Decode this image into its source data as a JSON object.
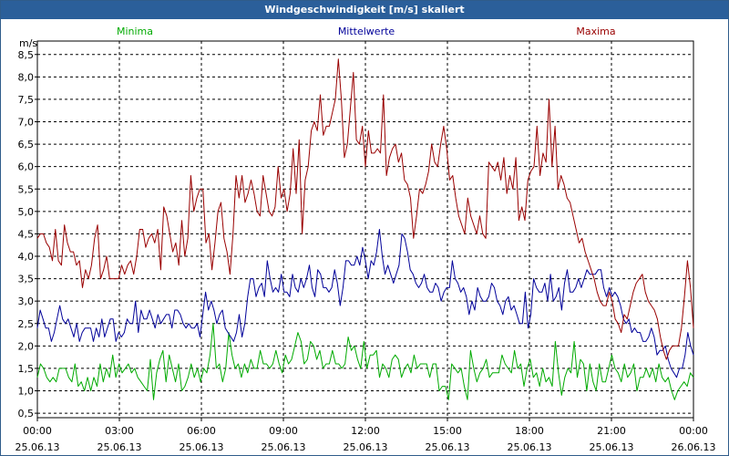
{
  "window": {
    "title": "Windgeschwindigkeit [m/s] skaliert"
  },
  "chart_data": {
    "type": "line",
    "title": "Windgeschwindigkeit [m/s] skaliert",
    "ylabel": "m/s",
    "xlabel": "",
    "ylim": [
      0.4,
      8.8
    ],
    "xlim": [
      0,
      24
    ],
    "yticks": [
      0.5,
      1.0,
      1.5,
      2.0,
      2.5,
      3.0,
      3.5,
      4.0,
      4.5,
      5.0,
      5.5,
      6.0,
      6.5,
      7.0,
      7.5,
      8.0,
      8.5
    ],
    "ytick_labels": [
      "0,5",
      "1,0",
      "1,5",
      "2,0",
      "2,5",
      "3,0",
      "3,5",
      "4,0",
      "4,5",
      "5,0",
      "5,5",
      "6,0",
      "6,5",
      "7,0",
      "7,5",
      "8,0",
      "8,5"
    ],
    "xticks": [
      {
        "time": "00:00",
        "date": "25.06.13",
        "x": 0
      },
      {
        "time": "03:00",
        "date": "25.06.13",
        "x": 3
      },
      {
        "time": "06:00",
        "date": "25.06.13",
        "x": 6
      },
      {
        "time": "09:00",
        "date": "25.06.13",
        "x": 9
      },
      {
        "time": "12:00",
        "date": "25.06.13",
        "x": 12
      },
      {
        "time": "15:00",
        "date": "25.06.13",
        "x": 15
      },
      {
        "time": "18:00",
        "date": "25.06.13",
        "x": 18
      },
      {
        "time": "21:00",
        "date": "25.06.13",
        "x": 21
      },
      {
        "time": "00:00",
        "date": "26.06.13",
        "x": 24
      }
    ],
    "grid": true,
    "series": [
      {
        "name": "Minima",
        "color": "#00aa00",
        "values": [
          1.3,
          1.6,
          1.5,
          1.3,
          1.2,
          1.3,
          1.2,
          1.5,
          1.5,
          1.5,
          1.3,
          1.2,
          1.6,
          1.1,
          1.2,
          1.0,
          1.3,
          1.0,
          1.3,
          1.1,
          1.6,
          1.2,
          1.5,
          1.3,
          1.8,
          1.3,
          1.6,
          1.4,
          1.5,
          1.6,
          1.4,
          1.5,
          1.3,
          1.2,
          1.1,
          1.0,
          1.7,
          0.8,
          1.4,
          1.7,
          1.9,
          1.2,
          1.8,
          1.5,
          1.2,
          1.6,
          1.0,
          1.1,
          1.3,
          1.6,
          1.3,
          1.5,
          1.2,
          1.5,
          1.4,
          1.8,
          2.5,
          1.5,
          1.6,
          1.2,
          1.5,
          2.3,
          1.8,
          1.5,
          1.6,
          1.3,
          1.6,
          1.4,
          1.7,
          1.5,
          1.5,
          1.9,
          1.6,
          1.6,
          1.5,
          1.6,
          1.9,
          1.6,
          1.4,
          1.8,
          1.6,
          1.7,
          2.0,
          2.3,
          2.1,
          1.6,
          1.7,
          2.1,
          2.0,
          1.7,
          1.9,
          1.5,
          1.6,
          1.6,
          1.9,
          1.6,
          1.6,
          1.5,
          1.6,
          2.2,
          1.9,
          2.0,
          1.7,
          1.5,
          2.1,
          1.5,
          1.8,
          1.8,
          1.9,
          1.3,
          1.6,
          1.5,
          1.3,
          1.7,
          1.8,
          1.7,
          1.3,
          1.5,
          1.6,
          1.4,
          1.8,
          1.5,
          1.6,
          1.6,
          1.6,
          1.3,
          1.6,
          1.6,
          1.0,
          1.1,
          1.1,
          0.8,
          1.6,
          1.5,
          1.4,
          1.5,
          1.1,
          0.8,
          1.9,
          1.5,
          1.2,
          1.4,
          1.5,
          1.7,
          1.3,
          1.4,
          1.4,
          1.4,
          1.8,
          1.6,
          1.5,
          1.4,
          1.9,
          1.5,
          1.6,
          1.1,
          1.5,
          1.7,
          1.3,
          1.4,
          1.1,
          1.5,
          1.2,
          1.3,
          1.1,
          2.1,
          1.4,
          0.9,
          1.3,
          1.5,
          1.4,
          2.1,
          1.3,
          1.7,
          1.6,
          1.0,
          1.6,
          1.2,
          1.0,
          1.6,
          1.2,
          1.2,
          1.5,
          1.8,
          1.5,
          1.4,
          1.2,
          1.6,
          1.3,
          1.4,
          1.6,
          1.0,
          1.3,
          1.3,
          1.5,
          1.3,
          1.5,
          1.2,
          1.6,
          1.3,
          1.2,
          1.3,
          1.0,
          0.8,
          1.0,
          1.1,
          1.2,
          1.1,
          1.4,
          1.3
        ]
      },
      {
        "name": "Mittelwerte",
        "color": "#000099",
        "values": [
          2.4,
          2.8,
          2.6,
          2.4,
          2.4,
          2.1,
          2.3,
          2.6,
          2.9,
          2.6,
          2.5,
          2.6,
          2.4,
          2.2,
          2.5,
          2.1,
          2.3,
          2.4,
          2.4,
          2.4,
          2.1,
          2.4,
          2.2,
          2.6,
          2.2,
          2.4,
          2.6,
          2.6,
          2.1,
          2.3,
          2.2,
          2.3,
          2.6,
          2.5,
          2.5,
          3.0,
          2.3,
          2.8,
          2.6,
          2.6,
          2.8,
          2.6,
          2.4,
          2.7,
          2.5,
          2.6,
          2.7,
          2.7,
          2.4,
          2.8,
          2.8,
          2.7,
          2.5,
          2.4,
          2.5,
          2.4,
          2.4,
          2.5,
          2.2,
          2.7,
          3.2,
          2.8,
          3.0,
          2.8,
          2.5,
          2.7,
          2.8,
          2.4,
          2.3,
          2.2,
          2.1,
          2.3,
          2.7,
          2.2,
          2.5,
          3.1,
          3.5,
          3.5,
          3.1,
          3.3,
          3.4,
          3.1,
          3.9,
          3.5,
          3.2,
          3.3,
          3.2,
          3.6,
          3.2,
          3.2,
          3.1,
          3.6,
          3.3,
          3.2,
          3.5,
          3.3,
          3.5,
          3.8,
          3.3,
          3.1,
          3.7,
          3.6,
          3.3,
          3.3,
          3.2,
          3.3,
          3.7,
          3.4,
          2.9,
          3.3,
          3.9,
          3.9,
          3.8,
          3.8,
          4.0,
          3.8,
          4.2,
          3.9,
          3.5,
          3.9,
          3.8,
          4.1,
          4.6,
          4.0,
          3.6,
          3.8,
          3.6,
          3.4,
          3.6,
          3.8,
          4.5,
          4.4,
          4.1,
          3.7,
          3.6,
          3.4,
          3.3,
          3.4,
          3.6,
          3.3,
          3.2,
          3.2,
          3.4,
          3.3,
          3.0,
          3.2,
          3.3,
          3.3,
          3.9,
          3.5,
          3.4,
          3.2,
          3.3,
          3.1,
          2.7,
          3.0,
          2.8,
          3.3,
          3.1,
          3.0,
          3.0,
          3.1,
          3.4,
          3.3,
          3.0,
          2.9,
          2.7,
          3.0,
          3.1,
          2.8,
          2.9,
          2.7,
          2.5,
          2.5,
          3.2,
          2.4,
          2.7,
          3.5,
          3.3,
          3.2,
          3.2,
          3.4,
          3.0,
          3.6,
          3.0,
          3.1,
          3.3,
          2.8,
          3.4,
          3.7,
          3.2,
          3.2,
          3.3,
          3.5,
          3.3,
          3.5,
          3.7,
          3.6,
          3.6,
          3.6,
          3.7,
          3.7,
          3.3,
          3.1,
          3.3,
          3.1,
          3.2,
          3.1,
          2.9,
          2.6,
          2.5,
          2.6,
          2.3,
          2.4,
          2.3,
          2.3,
          2.1,
          2.1,
          2.2,
          2.4,
          2.2,
          1.8,
          1.9,
          1.9,
          2.0,
          1.7,
          1.5,
          1.4,
          1.3,
          1.5,
          1.5,
          1.8,
          2.3,
          2.0,
          1.8
        ]
      },
      {
        "name": "Maxima",
        "color": "#990000",
        "values": [
          4.4,
          4.5,
          4.5,
          4.3,
          4.2,
          3.9,
          4.6,
          3.9,
          3.8,
          4.7,
          4.3,
          4.1,
          4.1,
          3.8,
          3.9,
          3.3,
          3.7,
          3.5,
          3.8,
          4.4,
          4.7,
          3.5,
          3.7,
          4.0,
          3.5,
          3.5,
          3.5,
          3.5,
          3.8,
          3.6,
          3.8,
          3.9,
          3.6,
          4.0,
          4.6,
          4.6,
          4.2,
          4.4,
          4.5,
          4.3,
          4.6,
          3.7,
          5.1,
          4.9,
          4.5,
          4.1,
          4.3,
          3.8,
          4.8,
          4.0,
          4.4,
          5.8,
          5.0,
          5.3,
          5.5,
          5.5,
          4.3,
          4.5,
          3.7,
          4.3,
          5.0,
          5.2,
          4.4,
          4.1,
          3.6,
          4.5,
          5.8,
          5.3,
          5.8,
          5.2,
          5.4,
          5.7,
          5.4,
          5.0,
          4.9,
          5.8,
          5.4,
          5.0,
          4.9,
          5.1,
          6.0,
          5.3,
          5.5,
          5.0,
          5.4,
          6.4,
          5.4,
          6.6,
          4.5,
          5.7,
          6.0,
          6.8,
          7.0,
          6.8,
          7.6,
          6.7,
          6.9,
          6.9,
          7.2,
          7.5,
          8.4,
          7.5,
          6.2,
          6.5,
          7.3,
          8.1,
          6.6,
          6.5,
          6.9,
          6.0,
          6.8,
          6.3,
          6.3,
          6.4,
          6.3,
          7.6,
          5.8,
          6.2,
          6.4,
          6.5,
          6.1,
          6.3,
          5.7,
          5.6,
          5.3,
          4.4,
          4.9,
          5.5,
          5.4,
          5.6,
          5.9,
          6.5,
          6.1,
          6.0,
          6.5,
          6.9,
          6.4,
          5.7,
          5.8,
          5.3,
          4.9,
          4.7,
          4.5,
          5.3,
          4.9,
          4.7,
          4.5,
          4.9,
          4.5,
          4.4,
          6.1,
          6.0,
          5.9,
          6.1,
          5.7,
          6.2,
          5.4,
          5.8,
          5.5,
          6.2,
          4.8,
          5.1,
          4.8,
          5.7,
          5.9,
          6.0,
          6.9,
          5.8,
          6.3,
          6.1,
          7.5,
          6.0,
          6.9,
          5.5,
          5.8,
          5.6,
          5.3,
          5.2,
          4.9,
          4.6,
          4.3,
          4.4,
          4.1,
          3.9,
          3.7,
          3.5,
          3.2,
          3.0,
          2.9,
          2.9,
          3.2,
          3.0,
          2.6,
          2.5,
          2.3,
          2.7,
          2.6,
          2.9,
          3.2,
          3.4,
          3.5,
          3.6,
          3.2,
          3.0,
          2.9,
          2.8,
          2.6,
          2.2,
          1.9,
          1.7,
          1.9,
          2.0,
          2.0,
          2.0,
          2.4,
          3.1,
          3.9,
          3.3,
          2.4
        ]
      }
    ]
  }
}
